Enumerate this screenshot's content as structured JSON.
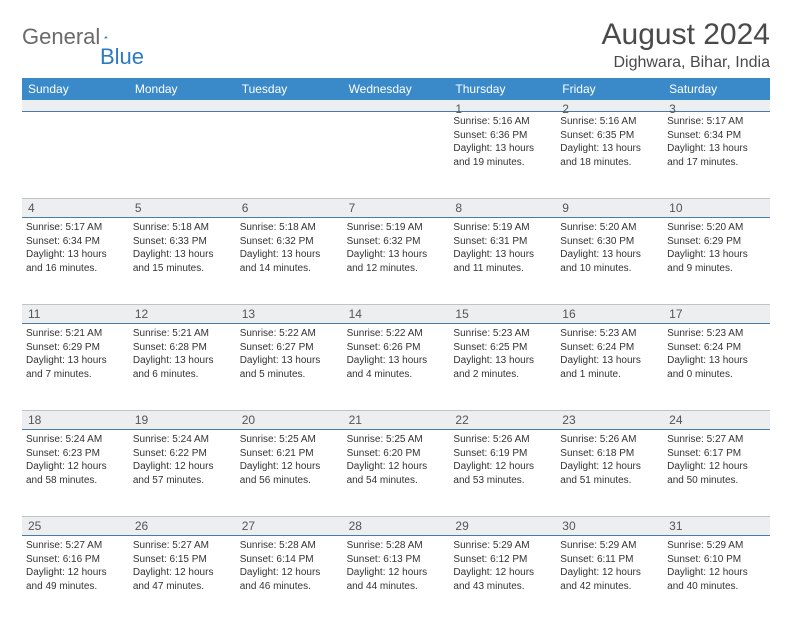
{
  "brand": {
    "part1": "General",
    "part2": "Blue"
  },
  "title": "August 2024",
  "location": "Dighwara, Bihar, India",
  "weekdays": [
    "Sunday",
    "Monday",
    "Tuesday",
    "Wednesday",
    "Thursday",
    "Friday",
    "Saturday"
  ],
  "colors": {
    "header_bg": "#3a8ac9",
    "header_text": "#ffffff",
    "daynum_bg": "#eceef0",
    "daynum_border_top": "#bfc2c6",
    "daynum_border_bottom": "#4a7aa8",
    "text": "#333333",
    "title_text": "#4a4a4a",
    "logo_gray": "#6a6a6a",
    "logo_blue": "#2d7bbf",
    "background": "#ffffff"
  },
  "fonts": {
    "title_size_pt": 22,
    "location_size_pt": 12,
    "weekday_size_pt": 9,
    "daynum_size_pt": 9,
    "body_size_pt": 7.5
  },
  "weeks": [
    {
      "nums": [
        "",
        "",
        "",
        "",
        "1",
        "2",
        "3"
      ],
      "cells": [
        null,
        null,
        null,
        null,
        {
          "sr": "Sunrise: 5:16 AM",
          "ss": "Sunset: 6:36 PM",
          "d1": "Daylight: 13 hours",
          "d2": "and 19 minutes."
        },
        {
          "sr": "Sunrise: 5:16 AM",
          "ss": "Sunset: 6:35 PM",
          "d1": "Daylight: 13 hours",
          "d2": "and 18 minutes."
        },
        {
          "sr": "Sunrise: 5:17 AM",
          "ss": "Sunset: 6:34 PM",
          "d1": "Daylight: 13 hours",
          "d2": "and 17 minutes."
        }
      ]
    },
    {
      "nums": [
        "4",
        "5",
        "6",
        "7",
        "8",
        "9",
        "10"
      ],
      "cells": [
        {
          "sr": "Sunrise: 5:17 AM",
          "ss": "Sunset: 6:34 PM",
          "d1": "Daylight: 13 hours",
          "d2": "and 16 minutes."
        },
        {
          "sr": "Sunrise: 5:18 AM",
          "ss": "Sunset: 6:33 PM",
          "d1": "Daylight: 13 hours",
          "d2": "and 15 minutes."
        },
        {
          "sr": "Sunrise: 5:18 AM",
          "ss": "Sunset: 6:32 PM",
          "d1": "Daylight: 13 hours",
          "d2": "and 14 minutes."
        },
        {
          "sr": "Sunrise: 5:19 AM",
          "ss": "Sunset: 6:32 PM",
          "d1": "Daylight: 13 hours",
          "d2": "and 12 minutes."
        },
        {
          "sr": "Sunrise: 5:19 AM",
          "ss": "Sunset: 6:31 PM",
          "d1": "Daylight: 13 hours",
          "d2": "and 11 minutes."
        },
        {
          "sr": "Sunrise: 5:20 AM",
          "ss": "Sunset: 6:30 PM",
          "d1": "Daylight: 13 hours",
          "d2": "and 10 minutes."
        },
        {
          "sr": "Sunrise: 5:20 AM",
          "ss": "Sunset: 6:29 PM",
          "d1": "Daylight: 13 hours",
          "d2": "and 9 minutes."
        }
      ]
    },
    {
      "nums": [
        "11",
        "12",
        "13",
        "14",
        "15",
        "16",
        "17"
      ],
      "cells": [
        {
          "sr": "Sunrise: 5:21 AM",
          "ss": "Sunset: 6:29 PM",
          "d1": "Daylight: 13 hours",
          "d2": "and 7 minutes."
        },
        {
          "sr": "Sunrise: 5:21 AM",
          "ss": "Sunset: 6:28 PM",
          "d1": "Daylight: 13 hours",
          "d2": "and 6 minutes."
        },
        {
          "sr": "Sunrise: 5:22 AM",
          "ss": "Sunset: 6:27 PM",
          "d1": "Daylight: 13 hours",
          "d2": "and 5 minutes."
        },
        {
          "sr": "Sunrise: 5:22 AM",
          "ss": "Sunset: 6:26 PM",
          "d1": "Daylight: 13 hours",
          "d2": "and 4 minutes."
        },
        {
          "sr": "Sunrise: 5:23 AM",
          "ss": "Sunset: 6:25 PM",
          "d1": "Daylight: 13 hours",
          "d2": "and 2 minutes."
        },
        {
          "sr": "Sunrise: 5:23 AM",
          "ss": "Sunset: 6:24 PM",
          "d1": "Daylight: 13 hours",
          "d2": "and 1 minute."
        },
        {
          "sr": "Sunrise: 5:23 AM",
          "ss": "Sunset: 6:24 PM",
          "d1": "Daylight: 13 hours",
          "d2": "and 0 minutes."
        }
      ]
    },
    {
      "nums": [
        "18",
        "19",
        "20",
        "21",
        "22",
        "23",
        "24"
      ],
      "cells": [
        {
          "sr": "Sunrise: 5:24 AM",
          "ss": "Sunset: 6:23 PM",
          "d1": "Daylight: 12 hours",
          "d2": "and 58 minutes."
        },
        {
          "sr": "Sunrise: 5:24 AM",
          "ss": "Sunset: 6:22 PM",
          "d1": "Daylight: 12 hours",
          "d2": "and 57 minutes."
        },
        {
          "sr": "Sunrise: 5:25 AM",
          "ss": "Sunset: 6:21 PM",
          "d1": "Daylight: 12 hours",
          "d2": "and 56 minutes."
        },
        {
          "sr": "Sunrise: 5:25 AM",
          "ss": "Sunset: 6:20 PM",
          "d1": "Daylight: 12 hours",
          "d2": "and 54 minutes."
        },
        {
          "sr": "Sunrise: 5:26 AM",
          "ss": "Sunset: 6:19 PM",
          "d1": "Daylight: 12 hours",
          "d2": "and 53 minutes."
        },
        {
          "sr": "Sunrise: 5:26 AM",
          "ss": "Sunset: 6:18 PM",
          "d1": "Daylight: 12 hours",
          "d2": "and 51 minutes."
        },
        {
          "sr": "Sunrise: 5:27 AM",
          "ss": "Sunset: 6:17 PM",
          "d1": "Daylight: 12 hours",
          "d2": "and 50 minutes."
        }
      ]
    },
    {
      "nums": [
        "25",
        "26",
        "27",
        "28",
        "29",
        "30",
        "31"
      ],
      "cells": [
        {
          "sr": "Sunrise: 5:27 AM",
          "ss": "Sunset: 6:16 PM",
          "d1": "Daylight: 12 hours",
          "d2": "and 49 minutes."
        },
        {
          "sr": "Sunrise: 5:27 AM",
          "ss": "Sunset: 6:15 PM",
          "d1": "Daylight: 12 hours",
          "d2": "and 47 minutes."
        },
        {
          "sr": "Sunrise: 5:28 AM",
          "ss": "Sunset: 6:14 PM",
          "d1": "Daylight: 12 hours",
          "d2": "and 46 minutes."
        },
        {
          "sr": "Sunrise: 5:28 AM",
          "ss": "Sunset: 6:13 PM",
          "d1": "Daylight: 12 hours",
          "d2": "and 44 minutes."
        },
        {
          "sr": "Sunrise: 5:29 AM",
          "ss": "Sunset: 6:12 PM",
          "d1": "Daylight: 12 hours",
          "d2": "and 43 minutes."
        },
        {
          "sr": "Sunrise: 5:29 AM",
          "ss": "Sunset: 6:11 PM",
          "d1": "Daylight: 12 hours",
          "d2": "and 42 minutes."
        },
        {
          "sr": "Sunrise: 5:29 AM",
          "ss": "Sunset: 6:10 PM",
          "d1": "Daylight: 12 hours",
          "d2": "and 40 minutes."
        }
      ]
    }
  ]
}
